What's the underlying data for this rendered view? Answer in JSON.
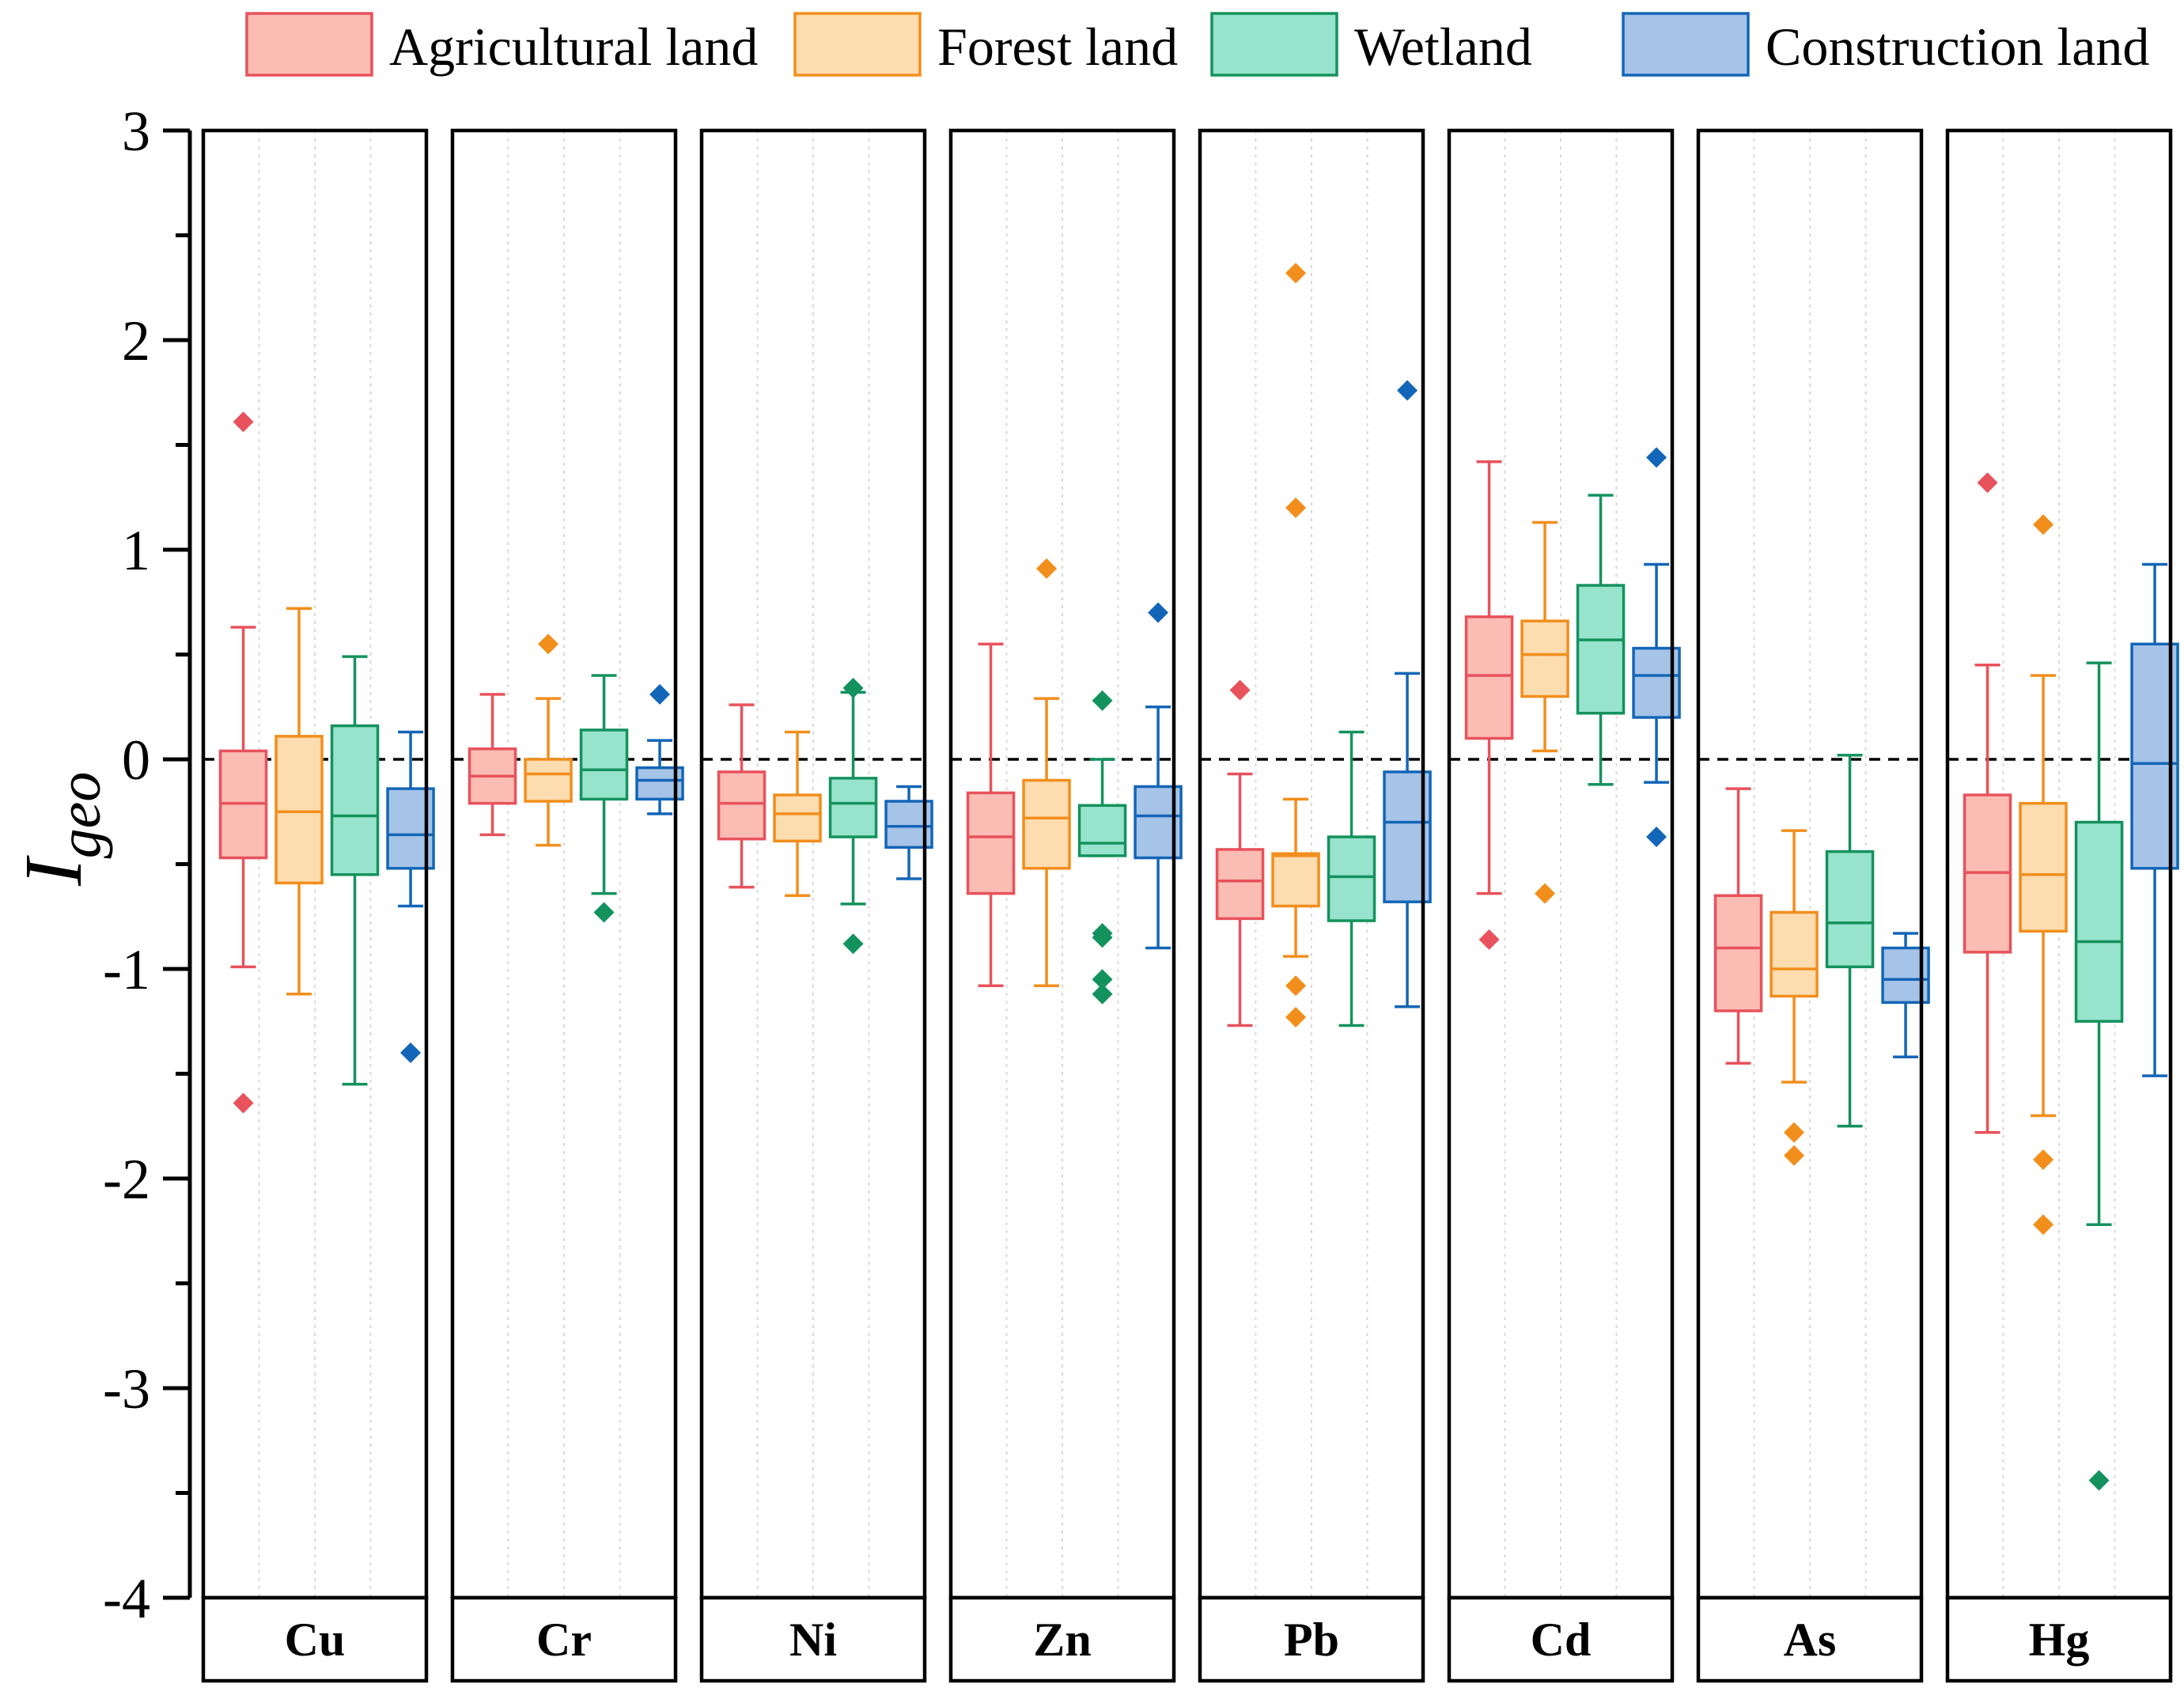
{
  "chart_data": {
    "type": "box",
    "title": "",
    "ylabel_main": "I",
    "ylabel_sub": "geo",
    "xlabel": "",
    "ylim": [
      -4,
      3
    ],
    "yticks": [
      "3",
      "2",
      "1",
      "0",
      "-1",
      "-2",
      "-3",
      "-4"
    ],
    "ytick_values": [
      3,
      2,
      1,
      0,
      -1,
      -2,
      -3,
      -4
    ],
    "reference_line": 0,
    "legend_position": "top",
    "series": [
      {
        "name": "Agricultural land",
        "line_color": "#e8525c",
        "fill_color": "#fbbcb3"
      },
      {
        "name": "Forest land",
        "line_color": "#f28e1c",
        "fill_color": "#fddcb0"
      },
      {
        "name": "Wetland",
        "line_color": "#14925e",
        "fill_color": "#98e3cc"
      },
      {
        "name": "Construction land",
        "line_color": "#1366b7",
        "fill_color": "#a6c3e8"
      }
    ],
    "categories": [
      "Cu",
      "Cr",
      "Ni",
      "Zn",
      "Pb",
      "Cd",
      "As",
      "Hg"
    ],
    "panels": [
      {
        "element": "Cu",
        "boxes": [
          {
            "min": -0.99,
            "q1": -0.47,
            "median": -0.21,
            "q3": 0.04,
            "max": 0.63,
            "outliers": [
              1.61,
              -1.64
            ]
          },
          {
            "min": -1.12,
            "q1": -0.59,
            "median": -0.25,
            "q3": 0.11,
            "max": 0.72,
            "outliers": []
          },
          {
            "min": -1.55,
            "q1": -0.55,
            "median": -0.27,
            "q3": 0.16,
            "max": 0.49,
            "outliers": []
          },
          {
            "min": -0.7,
            "q1": -0.52,
            "median": -0.36,
            "q3": -0.14,
            "max": 0.13,
            "outliers": [
              -1.4
            ]
          }
        ]
      },
      {
        "element": "Cr",
        "boxes": [
          {
            "min": -0.36,
            "q1": -0.21,
            "median": -0.08,
            "q3": 0.05,
            "max": 0.31,
            "outliers": []
          },
          {
            "min": -0.41,
            "q1": -0.2,
            "median": -0.07,
            "q3": 0.0,
            "max": 0.29,
            "outliers": [
              0.55
            ]
          },
          {
            "min": -0.64,
            "q1": -0.19,
            "median": -0.05,
            "q3": 0.14,
            "max": 0.4,
            "outliers": [
              -0.73
            ]
          },
          {
            "min": -0.26,
            "q1": -0.19,
            "median": -0.1,
            "q3": -0.04,
            "max": 0.09,
            "outliers": [
              0.31
            ]
          }
        ]
      },
      {
        "element": "Ni",
        "boxes": [
          {
            "min": -0.61,
            "q1": -0.38,
            "median": -0.21,
            "q3": -0.06,
            "max": 0.26,
            "outliers": []
          },
          {
            "min": -0.65,
            "q1": -0.39,
            "median": -0.26,
            "q3": -0.17,
            "max": 0.13,
            "outliers": []
          },
          {
            "min": -0.69,
            "q1": -0.37,
            "median": -0.21,
            "q3": -0.09,
            "max": 0.32,
            "outliers": [
              0.34,
              -0.88
            ]
          },
          {
            "min": -0.57,
            "q1": -0.42,
            "median": -0.32,
            "q3": -0.2,
            "max": -0.13,
            "outliers": []
          }
        ]
      },
      {
        "element": "Zn",
        "boxes": [
          {
            "min": -1.08,
            "q1": -0.64,
            "median": -0.37,
            "q3": -0.16,
            "max": 0.55,
            "outliers": []
          },
          {
            "min": -1.08,
            "q1": -0.52,
            "median": -0.28,
            "q3": -0.1,
            "max": 0.29,
            "outliers": [
              0.91
            ]
          },
          {
            "min": -0.46,
            "q1": -0.46,
            "median": -0.4,
            "q3": -0.22,
            "max": 0.0,
            "outliers": [
              0.28,
              -0.83,
              -0.85,
              -1.05,
              -1.12
            ]
          },
          {
            "min": -0.9,
            "q1": -0.47,
            "median": -0.27,
            "q3": -0.13,
            "max": 0.25,
            "outliers": [
              0.7
            ]
          }
        ]
      },
      {
        "element": "Pb",
        "boxes": [
          {
            "min": -1.27,
            "q1": -0.76,
            "median": -0.58,
            "q3": -0.43,
            "max": -0.07,
            "outliers": [
              0.33
            ]
          },
          {
            "min": -0.94,
            "q1": -0.7,
            "median": -0.46,
            "q3": -0.45,
            "max": -0.19,
            "outliers": [
              2.32,
              1.2,
              -1.08,
              -1.23
            ]
          },
          {
            "min": -1.27,
            "q1": -0.77,
            "median": -0.56,
            "q3": -0.37,
            "max": 0.13,
            "outliers": []
          },
          {
            "min": -1.18,
            "q1": -0.68,
            "median": -0.3,
            "q3": -0.06,
            "max": 0.41,
            "outliers": [
              1.76
            ]
          }
        ]
      },
      {
        "element": "Cd",
        "boxes": [
          {
            "min": -0.64,
            "q1": 0.1,
            "median": 0.4,
            "q3": 0.68,
            "max": 1.42,
            "outliers": [
              -0.86
            ]
          },
          {
            "min": 0.04,
            "q1": 0.3,
            "median": 0.5,
            "q3": 0.66,
            "max": 1.13,
            "outliers": [
              -0.64
            ]
          },
          {
            "min": -0.12,
            "q1": 0.22,
            "median": 0.57,
            "q3": 0.83,
            "max": 1.26,
            "outliers": []
          },
          {
            "min": -0.11,
            "q1": 0.2,
            "median": 0.4,
            "q3": 0.53,
            "max": 0.93,
            "outliers": [
              1.44,
              -0.37
            ]
          }
        ]
      },
      {
        "element": "As",
        "boxes": [
          {
            "min": -1.45,
            "q1": -1.2,
            "median": -0.9,
            "q3": -0.65,
            "max": -0.14,
            "outliers": []
          },
          {
            "min": -1.54,
            "q1": -1.13,
            "median": -1.0,
            "q3": -0.73,
            "max": -0.34,
            "outliers": [
              -1.78,
              -1.89
            ]
          },
          {
            "min": -1.75,
            "q1": -0.99,
            "median": -0.78,
            "q3": -0.44,
            "max": 0.02,
            "outliers": []
          },
          {
            "min": -1.42,
            "q1": -1.16,
            "median": -1.05,
            "q3": -0.9,
            "max": -0.83,
            "outliers": []
          }
        ]
      },
      {
        "element": "Hg",
        "boxes": [
          {
            "min": -1.78,
            "q1": -0.92,
            "median": -0.54,
            "q3": -0.17,
            "max": 0.45,
            "outliers": [
              1.32
            ]
          },
          {
            "min": -1.7,
            "q1": -0.82,
            "median": -0.55,
            "q3": -0.21,
            "max": 0.4,
            "outliers": [
              1.12,
              -1.91,
              -2.22
            ]
          },
          {
            "min": -2.22,
            "q1": -1.25,
            "median": -0.87,
            "q3": -0.3,
            "max": 0.46,
            "outliers": [
              -3.44
            ]
          },
          {
            "min": -1.51,
            "q1": -0.52,
            "median": -0.02,
            "q3": 0.55,
            "max": 0.93,
            "outliers": []
          }
        ]
      }
    ]
  }
}
